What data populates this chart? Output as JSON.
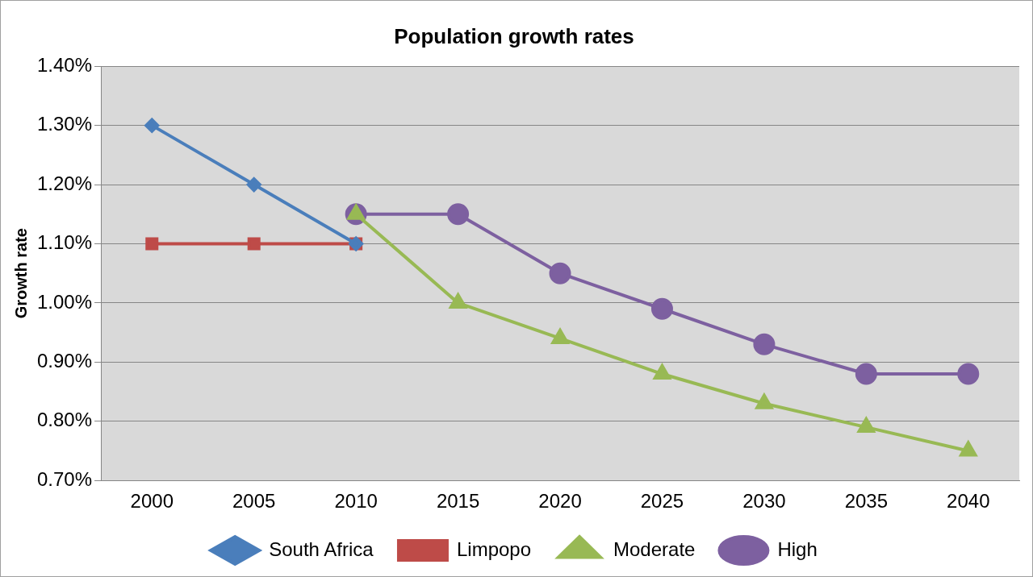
{
  "chart_data": {
    "type": "line",
    "title": "Population growth rates",
    "ylabel": "Growth rate",
    "categories": [
      "2000",
      "2005",
      "2010",
      "2015",
      "2020",
      "2025",
      "2030",
      "2035",
      "2040"
    ],
    "series": [
      {
        "name": "South Africa",
        "color": "#4a7ebb",
        "marker": "diamond",
        "values": [
          1.3,
          1.2,
          1.1,
          null,
          null,
          null,
          null,
          null,
          null
        ]
      },
      {
        "name": "Limpopo",
        "color": "#be4b48",
        "marker": "square",
        "values": [
          1.1,
          1.1,
          1.1,
          null,
          null,
          null,
          null,
          null,
          null
        ]
      },
      {
        "name": "Moderate",
        "color": "#98b954",
        "marker": "triangle",
        "values": [
          null,
          null,
          1.15,
          1.0,
          0.94,
          0.88,
          0.83,
          0.79,
          0.75
        ]
      },
      {
        "name": "High",
        "color": "#7d60a0",
        "marker": "circle",
        "values": [
          null,
          null,
          1.15,
          1.15,
          1.05,
          0.99,
          0.93,
          0.88,
          0.88
        ]
      }
    ],
    "ylim": [
      0.7,
      1.4
    ],
    "yticks": [
      {
        "value": 0.7,
        "label": "0.70%"
      },
      {
        "value": 0.8,
        "label": "0.80%"
      },
      {
        "value": 0.9,
        "label": "0.90%"
      },
      {
        "value": 1.0,
        "label": "1.00%"
      },
      {
        "value": 1.1,
        "label": "1.10%"
      },
      {
        "value": 1.2,
        "label": "1.20%"
      },
      {
        "value": 1.3,
        "label": "1.30%"
      },
      {
        "value": 1.4,
        "label": "1.40%"
      }
    ],
    "grid": "y",
    "legend": "bottom",
    "line_style": "solid"
  }
}
